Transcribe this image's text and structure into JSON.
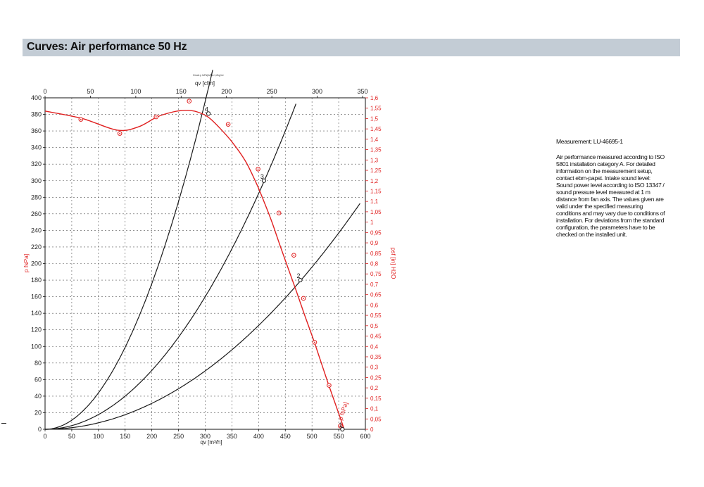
{
  "header": {
    "title": "Curves: Air performance 50 Hz"
  },
  "side_panel": {
    "measurement": "Measurement: LU-46695-1",
    "description_lines": [
      "Air performance measured according to ISO",
      "5801 installation category A. For detailed",
      "information on the measurement setup,",
      "contact ebm-papst. Intake sound level:",
      "Sound power level according to ISO 13347 /",
      "sound pressure level measured at 1 m",
      "distance from fan axis. The values given are",
      "valid under the specified measuring",
      "conditions and may vary due to conditions of",
      "installation. For deviations from the standard",
      "configuration, the parameters have to be",
      "checked on the installed unit."
    ]
  },
  "colors": {
    "accent": "#e02020",
    "curves": "#1a1a1a",
    "header_bg": "#c3ccd5"
  },
  "chart_data": {
    "type": "line",
    "caption": "Druck p fsPa|fsPa=1,2kg/m³",
    "x_bottom": {
      "label": "qv [m³/h]",
      "min": 0,
      "max": 600,
      "ticks": [
        0,
        50,
        100,
        150,
        200,
        250,
        300,
        350,
        400,
        450,
        500,
        550,
        600
      ]
    },
    "x_top": {
      "label": "qv [cfm]",
      "min": 0,
      "max": 353.1,
      "ticks": [
        0,
        50,
        100,
        150,
        200,
        250,
        300,
        350
      ]
    },
    "y_left": {
      "label": "p fsPa]",
      "min": 0,
      "max": 400,
      "step": 20
    },
    "y_right": {
      "label": "psf [in] H2O",
      "min": 0,
      "max": 1.6,
      "ticks": [
        "0",
        "0,05",
        "0,1",
        "0,15",
        "0,2",
        "0,25",
        "0,3",
        "0,35",
        "0,4",
        "0,45",
        "0,5",
        "0,55",
        "0,6",
        "0,65",
        "0,7",
        "0,75",
        "0,8",
        "0,85",
        "0,9",
        "0,95",
        "1",
        "1,05",
        "1,1",
        "1,15",
        "1,2",
        "1,25",
        "1,3",
        "1,35",
        "1,4",
        "1,45",
        "1,5",
        "1,55",
        "1,6"
      ]
    },
    "grid": true,
    "series": [
      {
        "name": "p fsPa]",
        "color": "#e02020",
        "x": [
          0,
          70,
          135,
          175,
          210,
          240,
          265,
          285,
          305,
          325,
          350,
          375,
          395,
          410,
          425,
          440,
          455,
          470,
          485,
          505,
          530,
          555,
          560
        ],
        "values": [
          384,
          375,
          361,
          365,
          377,
          383,
          385,
          383,
          377,
          365,
          347,
          324,
          298,
          275,
          250,
          222,
          195,
          168,
          140,
          104,
          56,
          10,
          0
        ]
      }
    ],
    "measured_points": {
      "x": [
        67,
        140,
        208,
        270,
        343,
        399,
        438,
        466,
        484,
        505,
        532,
        553
      ],
      "y": [
        374,
        357,
        377,
        396,
        368,
        314,
        261,
        210,
        158,
        105,
        53,
        4
      ]
    },
    "system_curves": [
      {
        "id": "4",
        "k": 0.004398,
        "x_end": 315
      },
      {
        "id": "3",
        "k": 0.001778,
        "x_end": 470
      },
      {
        "id": "2",
        "k": 0.000783,
        "x_end": 590
      }
    ],
    "operating_points": [
      {
        "label": "1",
        "x": 557,
        "y": 0
      },
      {
        "label": "2",
        "x": 478,
        "y": 180
      },
      {
        "label": "3",
        "x": 410,
        "y": 300
      },
      {
        "label": "4",
        "x": 306,
        "y": 381
      }
    ]
  }
}
